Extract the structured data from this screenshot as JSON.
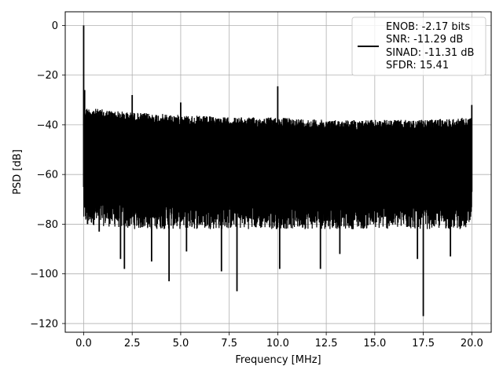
{
  "chart_data": {
    "type": "line",
    "title": "",
    "xlabel": "Frequency [MHz]",
    "ylabel": "PSD [dB]",
    "xlim": [
      -0.95,
      21.0
    ],
    "ylim": [
      -123.5,
      5.5
    ],
    "xticks": [
      0.0,
      2.5,
      5.0,
      7.5,
      10.0,
      12.5,
      15.0,
      17.5,
      20.0
    ],
    "xtick_labels": [
      "0.0",
      "2.5",
      "5.0",
      "7.5",
      "10.0",
      "12.5",
      "15.0",
      "17.5",
      "20.0"
    ],
    "yticks": [
      0,
      -20,
      -40,
      -60,
      -80,
      -100,
      -120
    ],
    "ytick_labels": [
      "0",
      "−20",
      "−40",
      "−60",
      "−80",
      "−100",
      "−120"
    ],
    "grid": true,
    "line_color": "#000000",
    "legend": {
      "placement": "top-right",
      "entries": [
        "ENOB: -2.17 bits",
        "SNR: -11.29 dB",
        "SINAD: -11.31 dB",
        "SFDR: 15.41"
      ]
    },
    "noise_band": {
      "x": [
        0.0,
        2.5,
        5.0,
        7.5,
        10.0,
        12.5,
        15.0,
        17.5,
        20.0
      ],
      "upper": [
        -33,
        -35,
        -36,
        -37,
        -37,
        -38,
        -38,
        -38,
        -37
      ],
      "lower": [
        -80,
        -82,
        -82,
        -82,
        -82,
        -82,
        -82,
        -82,
        -82
      ]
    },
    "peaks": [
      {
        "x": 0.0,
        "y": 0
      },
      {
        "x": 0.05,
        "y": -26
      },
      {
        "x": 2.5,
        "y": -28
      },
      {
        "x": 5.0,
        "y": -31
      },
      {
        "x": 10.0,
        "y": -24.5
      },
      {
        "x": 20.0,
        "y": -32
      }
    ],
    "dips": [
      {
        "x": 0.2,
        "y": -80
      },
      {
        "x": 0.8,
        "y": -83
      },
      {
        "x": 1.9,
        "y": -94
      },
      {
        "x": 2.1,
        "y": -98
      },
      {
        "x": 3.5,
        "y": -95
      },
      {
        "x": 4.4,
        "y": -103
      },
      {
        "x": 5.3,
        "y": -91
      },
      {
        "x": 7.1,
        "y": -99
      },
      {
        "x": 7.9,
        "y": -107
      },
      {
        "x": 10.1,
        "y": -98
      },
      {
        "x": 12.2,
        "y": -98
      },
      {
        "x": 13.2,
        "y": -92
      },
      {
        "x": 17.2,
        "y": -94
      },
      {
        "x": 17.5,
        "y": -117
      },
      {
        "x": 18.9,
        "y": -93
      }
    ]
  }
}
